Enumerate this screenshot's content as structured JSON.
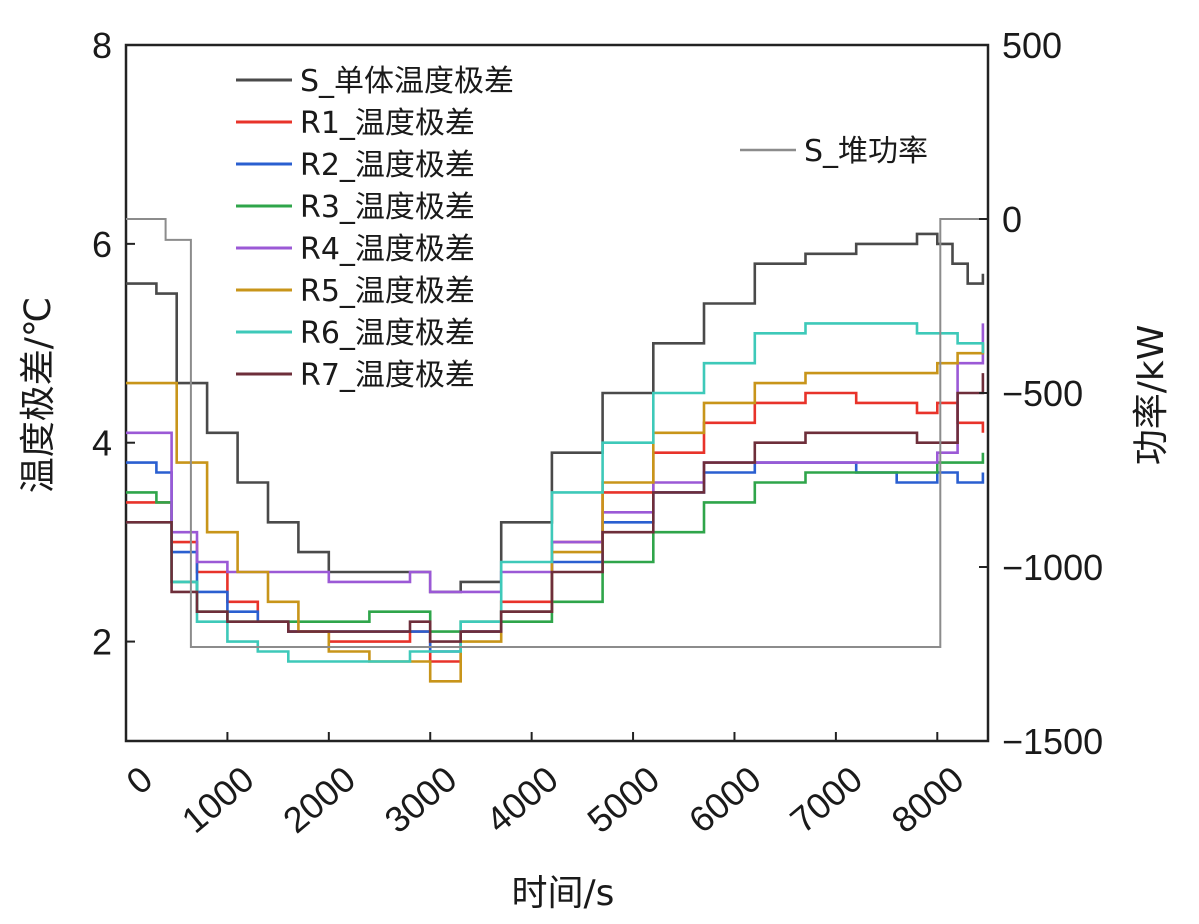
{
  "chart_data": {
    "type": "line",
    "xlabel": "时间/s",
    "ylabel": "温度极差/℃",
    "y2label": "功率/kW",
    "xlim": [
      0,
      8500
    ],
    "ylim": [
      1,
      8
    ],
    "y2lim": [
      -1500,
      500
    ],
    "x_ticks": [
      0,
      1000,
      2000,
      3000,
      4000,
      5000,
      6000,
      7000,
      8000
    ],
    "y_ticks": [
      2,
      4,
      6,
      8
    ],
    "y2_ticks": [
      500,
      0,
      -500,
      -1000,
      -1500
    ],
    "y2_tick_labels": [
      "500",
      "0",
      "−500",
      "−1000",
      "−1500"
    ],
    "legend_position": "top-left",
    "series": [
      {
        "name": "S_单体温度极差",
        "axis": "left",
        "color": "#4a4a4a",
        "x": [
          0,
          300,
          500,
          800,
          1100,
          1400,
          1700,
          2000,
          2400,
          2800,
          3000,
          3300,
          3700,
          4200,
          4700,
          5200,
          5700,
          6200,
          6700,
          7200,
          7800,
          8000,
          8150,
          8300,
          8450
        ],
        "y": [
          5.6,
          5.5,
          4.6,
          4.1,
          3.6,
          3.2,
          2.9,
          2.7,
          2.7,
          2.7,
          2.5,
          2.6,
          3.2,
          3.9,
          4.5,
          5.0,
          5.4,
          5.8,
          5.9,
          6.0,
          6.1,
          6.0,
          5.8,
          5.6,
          5.7
        ]
      },
      {
        "name": "R1_温度极差",
        "axis": "left",
        "color": "#e8332a",
        "x": [
          0,
          300,
          450,
          700,
          1000,
          1300,
          1600,
          2000,
          2400,
          2800,
          3000,
          3300,
          3700,
          4200,
          4700,
          5200,
          5700,
          6200,
          6700,
          7200,
          7800,
          8000,
          8200,
          8450
        ],
        "y": [
          3.4,
          3.4,
          3.0,
          2.7,
          2.4,
          2.2,
          2.1,
          2.0,
          2.0,
          2.1,
          1.8,
          2.1,
          2.4,
          3.0,
          3.5,
          3.9,
          4.2,
          4.4,
          4.5,
          4.4,
          4.3,
          4.4,
          4.2,
          4.1
        ]
      },
      {
        "name": "R2_温度极差",
        "axis": "left",
        "color": "#2a5fd0",
        "x": [
          0,
          300,
          450,
          700,
          1000,
          1300,
          1600,
          2000,
          2400,
          2800,
          3000,
          3300,
          3700,
          4200,
          4700,
          5200,
          5700,
          6200,
          6700,
          7200,
          7600,
          7800,
          8000,
          8200,
          8450
        ],
        "y": [
          3.8,
          3.7,
          2.9,
          2.5,
          2.3,
          2.2,
          2.1,
          2.1,
          2.1,
          2.1,
          1.9,
          2.1,
          2.3,
          2.8,
          3.2,
          3.5,
          3.7,
          3.8,
          3.8,
          3.7,
          3.6,
          3.6,
          3.7,
          3.6,
          3.7
        ]
      },
      {
        "name": "R3_温度极差",
        "axis": "left",
        "color": "#2fa54a",
        "x": [
          0,
          300,
          450,
          700,
          1000,
          1300,
          1600,
          2000,
          2400,
          2800,
          3000,
          3300,
          3700,
          4200,
          4700,
          5200,
          5700,
          6200,
          6700,
          7200,
          7800,
          8000,
          8200,
          8450
        ],
        "y": [
          3.5,
          3.4,
          2.6,
          2.3,
          2.2,
          2.2,
          2.2,
          2.2,
          2.3,
          2.3,
          2.1,
          2.2,
          2.2,
          2.4,
          2.8,
          3.1,
          3.4,
          3.6,
          3.7,
          3.7,
          3.7,
          3.8,
          3.8,
          3.9
        ]
      },
      {
        "name": "R4_温度极差",
        "axis": "left",
        "color": "#9b59d6",
        "x": [
          0,
          300,
          450,
          700,
          1000,
          1300,
          1600,
          2000,
          2400,
          2800,
          3000,
          3300,
          3700,
          4200,
          4700,
          5200,
          5700,
          6200,
          6700,
          7200,
          7800,
          8000,
          8200,
          8450
        ],
        "y": [
          4.1,
          4.1,
          3.1,
          2.8,
          2.7,
          2.7,
          2.7,
          2.6,
          2.6,
          2.7,
          2.5,
          2.5,
          2.7,
          3.0,
          3.3,
          3.6,
          3.8,
          3.8,
          3.8,
          3.8,
          3.8,
          3.9,
          4.8,
          5.2
        ]
      },
      {
        "name": "R5_温度极差",
        "axis": "left",
        "color": "#c8951a",
        "x": [
          0,
          350,
          500,
          800,
          1100,
          1400,
          1700,
          2000,
          2400,
          2800,
          3000,
          3300,
          3700,
          4200,
          4700,
          5200,
          5700,
          6200,
          6700,
          7200,
          7800,
          8000,
          8200,
          8450
        ],
        "y": [
          4.6,
          4.6,
          3.8,
          3.1,
          2.7,
          2.4,
          2.1,
          1.9,
          1.8,
          1.8,
          1.6,
          2.0,
          2.3,
          2.9,
          3.6,
          4.1,
          4.4,
          4.6,
          4.7,
          4.7,
          4.7,
          4.8,
          4.9,
          5.0
        ]
      },
      {
        "name": "R6_温度极差",
        "axis": "left",
        "color": "#3ec9b9",
        "x": [
          0,
          300,
          450,
          700,
          1000,
          1300,
          1600,
          2000,
          2400,
          2800,
          3000,
          3300,
          3700,
          4200,
          4700,
          5200,
          5700,
          6200,
          6700,
          7200,
          7800,
          8000,
          8200,
          8450
        ],
        "y": [
          3.2,
          3.2,
          2.6,
          2.2,
          2.0,
          1.9,
          1.8,
          1.8,
          1.8,
          1.9,
          1.9,
          2.2,
          2.8,
          3.5,
          4.0,
          4.5,
          4.8,
          5.1,
          5.2,
          5.2,
          5.1,
          5.1,
          5.0,
          4.9
        ]
      },
      {
        "name": "R7_温度极差",
        "axis": "left",
        "color": "#6e2e3a",
        "x": [
          0,
          300,
          450,
          700,
          1000,
          1300,
          1600,
          2000,
          2400,
          2800,
          3000,
          3300,
          3700,
          4200,
          4700,
          5200,
          5700,
          6200,
          6700,
          7200,
          7800,
          8000,
          8200,
          8450
        ],
        "y": [
          3.2,
          3.2,
          2.5,
          2.3,
          2.2,
          2.2,
          2.1,
          2.1,
          2.1,
          2.2,
          2.0,
          2.1,
          2.3,
          2.7,
          3.1,
          3.5,
          3.8,
          4.0,
          4.1,
          4.1,
          4.0,
          4.0,
          4.5,
          4.7
        ]
      },
      {
        "name": "S_堆功率",
        "axis": "right",
        "color": "#8c8c8c",
        "x": [
          0,
          390,
          390,
          640,
          640,
          8030,
          8030,
          8500
        ],
        "y": [
          0,
          0,
          -60,
          -60,
          -1230,
          -1230,
          0,
          0
        ]
      }
    ]
  }
}
